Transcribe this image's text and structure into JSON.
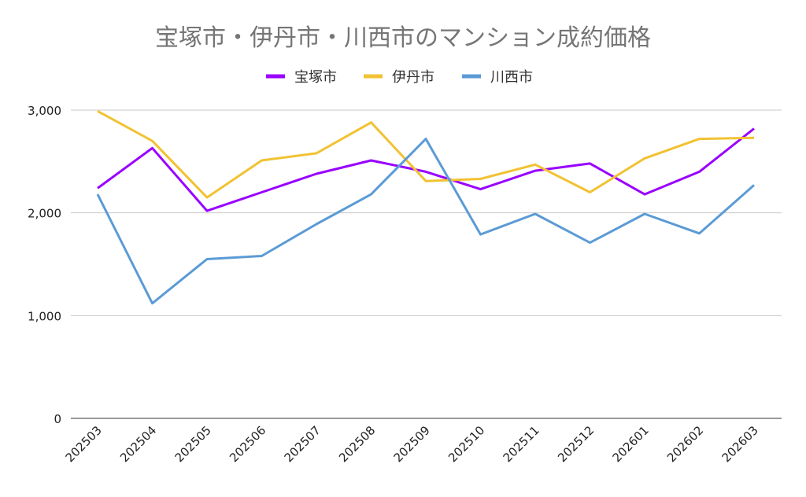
{
  "chart_data": {
    "type": "line",
    "title": "宝塚市・伊丹市・川西市のマンション成約価格",
    "xlabel": "",
    "ylabel": "",
    "ylim": [
      0,
      3000
    ],
    "yticks": [
      0,
      1000,
      2000,
      3000
    ],
    "ytick_labels": [
      "0",
      "1,000",
      "2,000",
      "3,000"
    ],
    "grid": true,
    "legend_position": "top-center",
    "categories": [
      "202503",
      "202504",
      "202505",
      "202506",
      "202507",
      "202508",
      "202509",
      "202510",
      "202511",
      "202512",
      "202601",
      "202602",
      "202603"
    ],
    "series": [
      {
        "name": "宝塚市",
        "color": "#9900ff",
        "values": [
          2240,
          2630,
          2020,
          2200,
          2380,
          2510,
          2400,
          2230,
          2410,
          2480,
          2180,
          2400,
          2820
        ]
      },
      {
        "name": "伊丹市",
        "color": "#f1c232",
        "values": [
          2990,
          2700,
          2150,
          2510,
          2580,
          2880,
          2310,
          2330,
          2470,
          2200,
          2530,
          2720,
          2730
        ]
      },
      {
        "name": "川西市",
        "color": "#5b9bd5",
        "values": [
          2180,
          1120,
          1550,
          1580,
          1890,
          2180,
          2720,
          1790,
          1990,
          1710,
          1990,
          1800,
          2270
        ]
      }
    ]
  }
}
